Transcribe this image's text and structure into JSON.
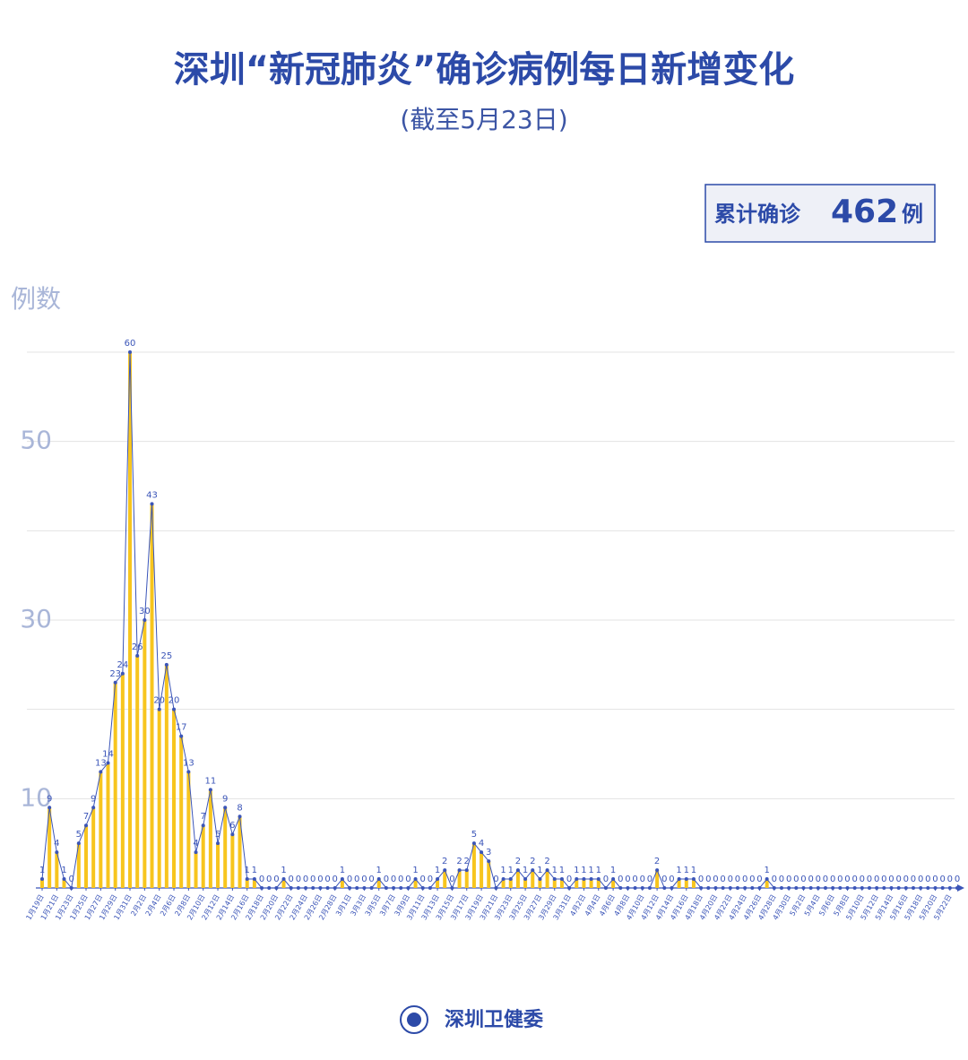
{
  "chart_data": {
    "type": "bar_line",
    "title": "深圳“新冠肺炎”确诊病例每日新增变化",
    "subtitle": "(截至5月23日)",
    "total_label": "累计确诊",
    "total": 462,
    "total_unit": "例",
    "y_label": "例数",
    "source": "深圳卫健委",
    "bar_color": "#f7c51e",
    "line_color": "#3b55b8",
    "ylim": [
      0,
      60
    ],
    "yticks": [
      10,
      30,
      50
    ],
    "grid_lines": [
      10,
      20,
      30,
      40,
      50,
      60
    ],
    "grid": true,
    "categories": [
      "1月19日",
      null,
      "1月21日",
      null,
      "1月23日",
      null,
      "1月25日",
      null,
      "1月27日",
      null,
      "1月29日",
      null,
      "1月31日",
      null,
      "2月2日",
      null,
      "2月4日",
      null,
      "2月6日",
      null,
      "2月8日",
      null,
      "2月10日",
      null,
      "2月12日",
      null,
      "2月14日",
      null,
      "2月16日",
      null,
      "2月18日",
      null,
      "2月20日",
      null,
      "2月22日",
      null,
      "2月24日",
      null,
      "2月26日",
      null,
      "2月28日",
      null,
      "3月1日",
      null,
      "3月3日",
      null,
      "3月5日",
      null,
      "3月7日",
      null,
      "3月9日",
      null,
      "3月11日",
      null,
      "3月13日",
      null,
      "3月15日",
      null,
      "3月17日",
      null,
      "3月19日",
      null,
      "3月21日",
      null,
      "3月23日",
      null,
      "3月25日",
      null,
      "3月27日",
      null,
      "3月29日",
      null,
      "3月31日",
      null,
      "4月2日",
      null,
      "4月4日",
      null,
      "4月6日",
      null,
      "4月8日",
      null,
      "4月10日",
      null,
      "4月12日",
      null,
      "4月14日",
      null,
      "4月16日",
      null,
      "4月18日",
      null,
      "4月20日",
      null,
      "4月22日",
      null,
      "4月24日",
      null,
      "4月26日",
      null,
      "4月28日",
      null,
      "4月30日",
      null,
      "5月2日",
      null,
      "5月4日",
      null,
      "5月6日",
      null,
      "5月8日",
      null,
      "5月10日",
      null,
      "5月12日",
      null,
      "5月14日",
      null,
      "5月16日",
      null,
      "5月18日",
      null,
      "5月20日",
      null,
      "5月22日",
      null
    ],
    "values": [
      1,
      9,
      4,
      1,
      0,
      5,
      7,
      9,
      13,
      14,
      23,
      24,
      60,
      26,
      30,
      43,
      20,
      25,
      20,
      17,
      13,
      4,
      7,
      11,
      5,
      9,
      6,
      8,
      1,
      1,
      0,
      0,
      0,
      1,
      0,
      0,
      0,
      0,
      0,
      0,
      0,
      1,
      0,
      0,
      0,
      0,
      1,
      0,
      0,
      0,
      0,
      1,
      0,
      0,
      1,
      2,
      0,
      2,
      2,
      5,
      4,
      3,
      0,
      1,
      1,
      2,
      1,
      2,
      1,
      2,
      1,
      1,
      0,
      1,
      1,
      1,
      1,
      0,
      1,
      0,
      0,
      0,
      0,
      0,
      2,
      0,
      0,
      1,
      1,
      1,
      0,
      0,
      0,
      0,
      0,
      0,
      0,
      0,
      0,
      1,
      0,
      0,
      0,
      0,
      0,
      0,
      0,
      0,
      0,
      0,
      0,
      0,
      0,
      0,
      0,
      0,
      0,
      0,
      0,
      0,
      0,
      0,
      0,
      0,
      0,
      0
    ]
  }
}
